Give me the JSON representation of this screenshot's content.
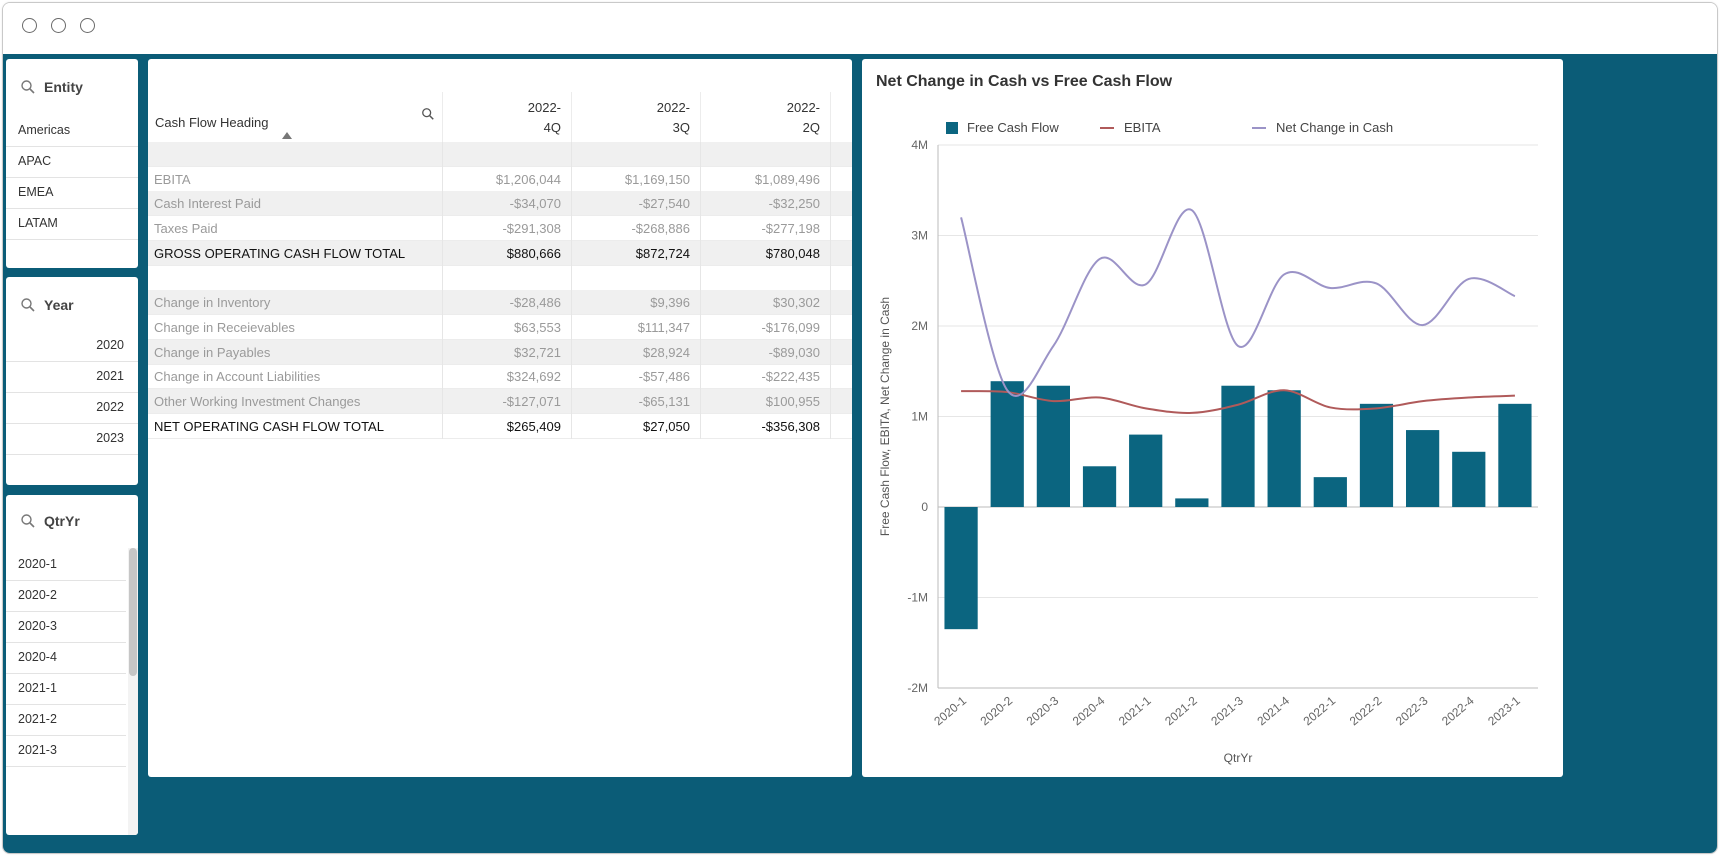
{
  "filters": {
    "entity": {
      "title": "Entity",
      "items": [
        "Americas",
        "APAC",
        "EMEA",
        "LATAM"
      ]
    },
    "year": {
      "title": "Year",
      "items": [
        "2020",
        "2021",
        "2022",
        "2023"
      ]
    },
    "qtryr": {
      "title": "QtrYr",
      "items": [
        "2020-1",
        "2020-2",
        "2020-3",
        "2020-4",
        "2021-1",
        "2021-2",
        "2021-3"
      ]
    }
  },
  "table": {
    "heading": "Cash Flow Heading",
    "columns": [
      {
        "line1": "2022-",
        "line2": "4Q"
      },
      {
        "line1": "2022-",
        "line2": "3Q"
      },
      {
        "line1": "2022-",
        "line2": "2Q"
      }
    ],
    "rows": [
      {
        "label": "",
        "values": [
          "",
          "",
          ""
        ],
        "style": "muted"
      },
      {
        "label": "EBITA",
        "values": [
          "$1,206,044",
          "$1,169,150",
          "$1,089,496"
        ],
        "style": "muted"
      },
      {
        "label": "Cash Interest Paid",
        "values": [
          "-$34,070",
          "-$27,540",
          "-$32,250"
        ],
        "style": "muted"
      },
      {
        "label": "Taxes Paid",
        "values": [
          "-$291,308",
          "-$268,886",
          "-$277,198"
        ],
        "style": "muted"
      },
      {
        "label": "GROSS OPERATING CASH FLOW TOTAL",
        "values": [
          "$880,666",
          "$872,724",
          "$780,048"
        ],
        "style": "strong"
      },
      {
        "label": "",
        "values": [
          "",
          "",
          ""
        ],
        "style": "muted"
      },
      {
        "label": "Change in Inventory",
        "values": [
          "-$28,486",
          "$9,396",
          "$30,302"
        ],
        "style": "muted"
      },
      {
        "label": "Change in Receievables",
        "values": [
          "$63,553",
          "$111,347",
          "-$176,099"
        ],
        "style": "muted"
      },
      {
        "label": "Change in Payables",
        "values": [
          "$32,721",
          "$28,924",
          "-$89,030"
        ],
        "style": "muted"
      },
      {
        "label": "Change in Account Liabilities",
        "values": [
          "$324,692",
          "-$57,486",
          "-$222,435"
        ],
        "style": "muted"
      },
      {
        "label": "Other Working Investment Changes",
        "values": [
          "-$127,071",
          "-$65,131",
          "$100,955"
        ],
        "style": "muted"
      },
      {
        "label": "NET OPERATING CASH FLOW TOTAL",
        "values": [
          "$265,409",
          "$27,050",
          "-$356,308"
        ],
        "style": "strong"
      }
    ]
  },
  "colors": {
    "frame": "#0b5c77",
    "bar": "#0b6580",
    "ebita": "#b05a5a",
    "net_change": "#9b93c7"
  },
  "chart_data": {
    "type": "bar",
    "title": "Net Change in Cash vs Free Cash Flow",
    "xlabel": "QtrYr",
    "ylabel": "Free Cash Flow, EBITA, Net Change in Cash",
    "ylim": [
      -2000000,
      4000000
    ],
    "yticks": [
      -2000000,
      -1000000,
      0,
      1000000,
      2000000,
      3000000,
      4000000
    ],
    "ytick_labels": [
      "-2M",
      "-1M",
      "0",
      "1M",
      "2M",
      "3M",
      "4M"
    ],
    "categories": [
      "2020-1",
      "2020-2",
      "2020-3",
      "2020-4",
      "2021-1",
      "2021-2",
      "2021-3",
      "2021-4",
      "2022-1",
      "2022-2",
      "2022-3",
      "2022-4",
      "2023-1"
    ],
    "series": [
      {
        "name": "Free Cash Flow",
        "kind": "bar",
        "values": [
          -1350000,
          1390000,
          1340000,
          450000,
          800000,
          95000,
          1340000,
          1290000,
          330000,
          1140000,
          850000,
          610000,
          1140000
        ]
      },
      {
        "name": "EBITA",
        "kind": "line",
        "values": [
          1280000,
          1270000,
          1170000,
          1210000,
          1090000,
          1040000,
          1130000,
          1290000,
          1100000,
          1090000,
          1170000,
          1210000,
          1230000
        ]
      },
      {
        "name": "Net Change in Cash",
        "kind": "line",
        "values": [
          3200000,
          1290000,
          1780000,
          2740000,
          2460000,
          3280000,
          1780000,
          2570000,
          2420000,
          2470000,
          2010000,
          2520000,
          2330000
        ]
      }
    ],
    "legend": "top"
  }
}
